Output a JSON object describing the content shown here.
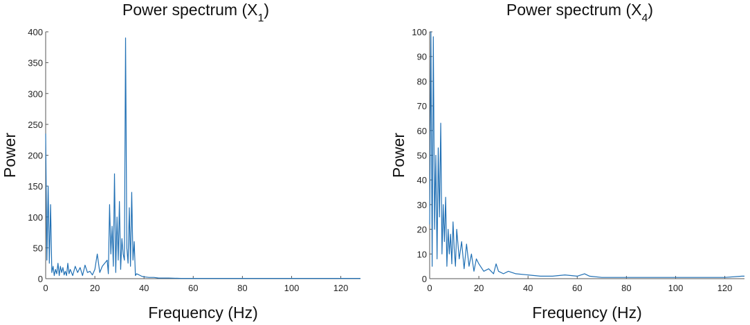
{
  "colors": {
    "series": "#1f6fb4",
    "axis": "#555555",
    "text": "#111111"
  },
  "chart_data": [
    {
      "type": "line",
      "title": "Power spectrum (X",
      "title_sub": "1",
      "title_suffix": ")",
      "xlabel": "Frequency (Hz)",
      "ylabel": "Power",
      "xlim": [
        0,
        128
      ],
      "ylim": [
        0,
        400
      ],
      "xticks": [
        0,
        20,
        40,
        60,
        80,
        100,
        120
      ],
      "yticks": [
        0,
        50,
        100,
        150,
        200,
        250,
        300,
        350,
        400
      ],
      "grid": false,
      "series": [
        {
          "x": [
            0,
            0.5,
            1,
            1.5,
            2,
            2.5,
            3,
            3.5,
            4,
            4.5,
            5,
            5.5,
            6,
            6.5,
            7,
            7.5,
            8,
            8.5,
            9,
            9.5,
            10,
            11,
            12,
            13,
            14,
            15,
            16,
            17,
            18,
            19,
            20,
            21,
            22,
            23,
            24,
            25,
            25.5,
            26,
            26.5,
            27,
            27.5,
            28,
            28.5,
            29,
            29.5,
            30,
            30.5,
            31,
            31.5,
            32,
            32.5,
            33,
            33.5,
            34,
            34.5,
            35,
            35.5,
            36,
            36.5,
            37,
            38,
            39,
            40,
            42,
            44,
            46,
            48,
            50,
            55,
            60,
            65,
            70,
            80,
            90,
            100,
            110,
            120,
            128
          ],
          "values": [
            235,
            30,
            150,
            25,
            120,
            10,
            20,
            5,
            15,
            8,
            25,
            5,
            20,
            10,
            18,
            6,
            12,
            5,
            25,
            8,
            15,
            5,
            20,
            10,
            18,
            5,
            22,
            10,
            12,
            6,
            15,
            40,
            10,
            20,
            25,
            30,
            8,
            120,
            40,
            85,
            20,
            170,
            10,
            100,
            30,
            125,
            15,
            65,
            40,
            30,
            390,
            50,
            25,
            115,
            20,
            140,
            30,
            60,
            5,
            8,
            6,
            4,
            3,
            2,
            2,
            1,
            1,
            1,
            0.5,
            0.5,
            0.5,
            0.5,
            0.5,
            0.5,
            0.5,
            0.5,
            0.5,
            0.5
          ]
        }
      ]
    },
    {
      "type": "line",
      "title": "Power spectrum (X",
      "title_sub": "4",
      "title_suffix": ")",
      "xlabel": "Frequency (Hz)",
      "ylabel": "Power",
      "xlim": [
        0,
        128
      ],
      "ylim": [
        0,
        100
      ],
      "xticks": [
        0,
        20,
        40,
        60,
        80,
        100,
        120
      ],
      "yticks": [
        0,
        10,
        20,
        30,
        40,
        50,
        60,
        70,
        80,
        90,
        100
      ],
      "grid": false,
      "series": [
        {
          "x": [
            0,
            0.5,
            1,
            1.5,
            2,
            2.5,
            3,
            3.5,
            4,
            4.5,
            5,
            5.5,
            6,
            6.5,
            7,
            7.5,
            8,
            8.5,
            9,
            9.5,
            10,
            10.5,
            11,
            12,
            13,
            14,
            15,
            16,
            17,
            18,
            19,
            20,
            22,
            24,
            26,
            27,
            28,
            30,
            32,
            35,
            40,
            45,
            50,
            55,
            60,
            63,
            65,
            70,
            80,
            90,
            100,
            110,
            120,
            127,
            128
          ],
          "values": [
            22,
            100,
            5,
            98,
            20,
            50,
            8,
            53,
            25,
            63,
            10,
            30,
            15,
            33,
            5,
            20,
            10,
            18,
            6,
            23,
            12,
            5,
            20,
            8,
            15,
            4,
            14,
            5,
            10,
            3,
            8,
            6,
            3,
            4,
            2,
            6,
            3,
            2,
            3,
            2,
            1.5,
            1,
            1,
            1.5,
            1,
            2,
            1,
            0.5,
            0.5,
            0.5,
            0.5,
            0.5,
            0.5,
            1,
            1
          ]
        }
      ]
    }
  ]
}
